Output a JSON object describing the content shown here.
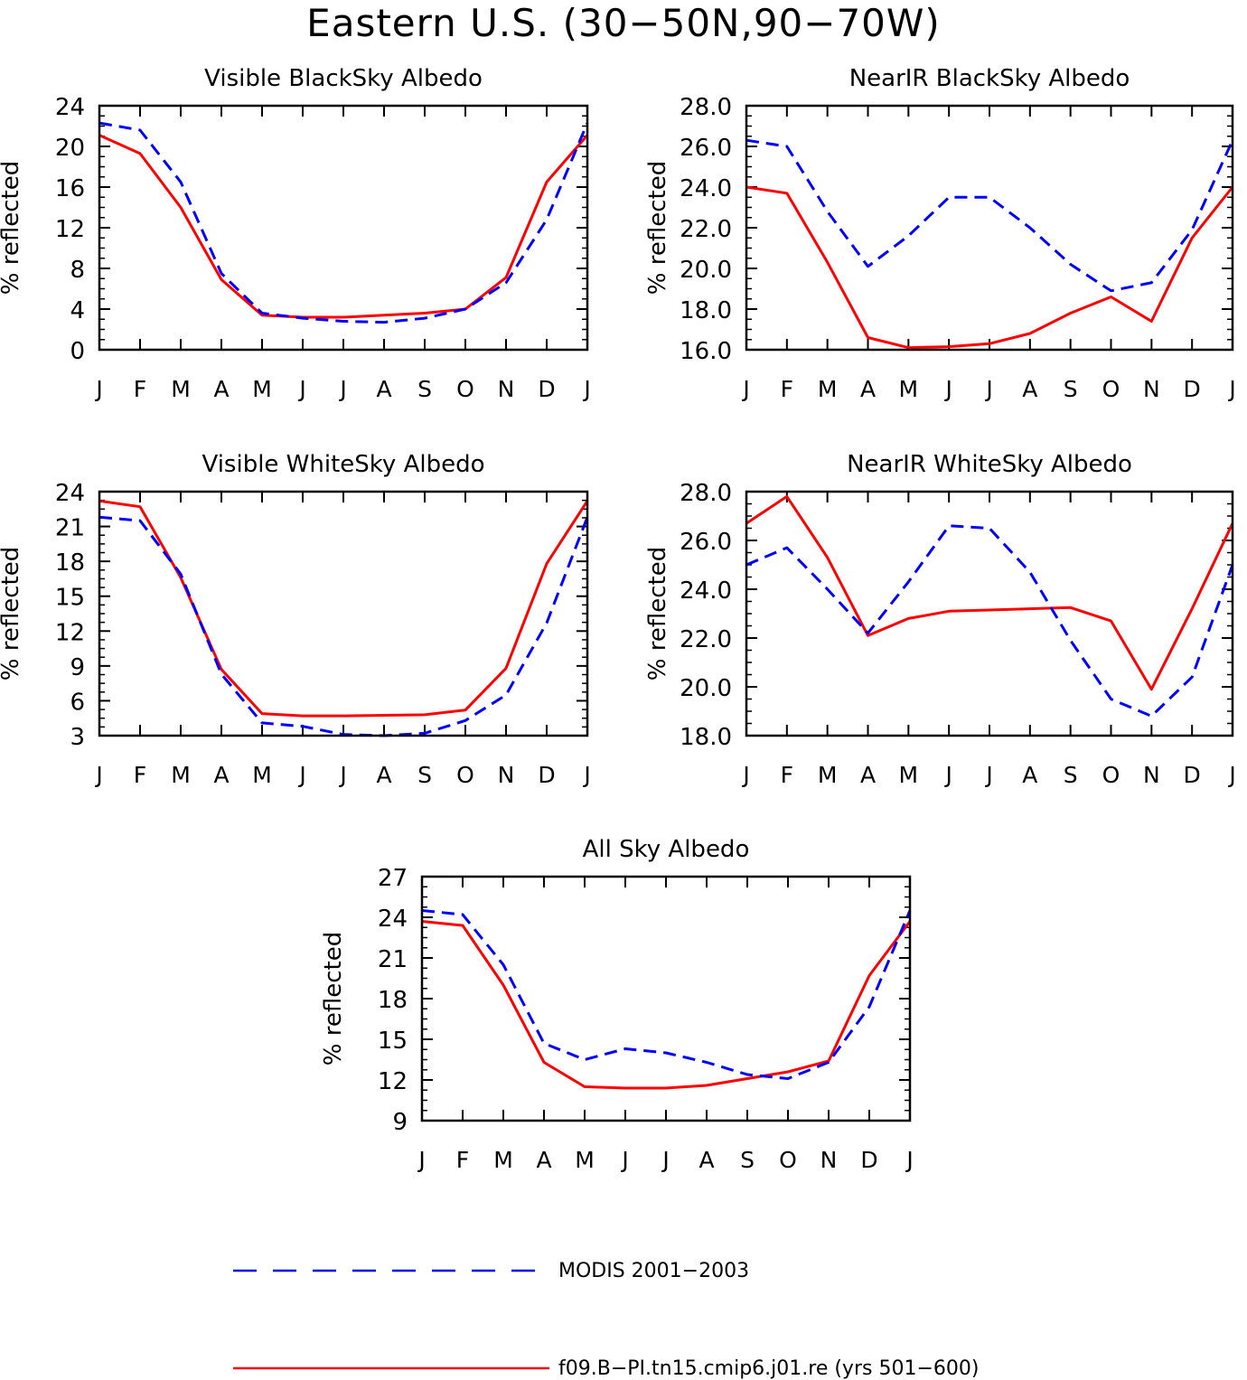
{
  "figure": {
    "title": "Eastern U.S. (30−50N,90−70W)"
  },
  "legend": [
    {
      "label": "MODIS 2001−2003",
      "color": "#0000ff",
      "style": "dashed"
    },
    {
      "label": "f09.B−PI.tn15.cmip6.j01.re (yrs 501−600)",
      "color": "#ff0000",
      "style": "solid"
    }
  ],
  "chart_data": [
    {
      "type": "line",
      "title": "Visible BlackSky Albedo",
      "ylabel": "% reflected",
      "xlabel": "",
      "categories": [
        "J",
        "F",
        "M",
        "A",
        "M",
        "J",
        "J",
        "A",
        "S",
        "O",
        "N",
        "D",
        "J"
      ],
      "ylim": [
        0,
        24
      ],
      "yticks": [
        0,
        4,
        8,
        12,
        16,
        20,
        24
      ],
      "ytick_labels": [
        "0",
        "4",
        "8",
        "12",
        "16",
        "20",
        "24"
      ],
      "series": [
        {
          "name": "MODIS 2001−2003",
          "color": "#0000ff",
          "dashed": true,
          "values": [
            22.3,
            21.6,
            16.5,
            7.5,
            3.6,
            3.1,
            2.8,
            2.7,
            3.1,
            4.0,
            6.6,
            12.8,
            22.3
          ]
        },
        {
          "name": "f09.B−PI.tn15.cmip6.j01.re (yrs 501−600)",
          "color": "#ff0000",
          "dashed": false,
          "values": [
            21.1,
            19.3,
            14.0,
            6.9,
            3.4,
            3.2,
            3.2,
            3.4,
            3.6,
            4.0,
            7.1,
            16.5,
            21.1
          ]
        }
      ]
    },
    {
      "type": "line",
      "title": "NearIR BlackSky Albedo",
      "ylabel": "% reflected",
      "xlabel": "",
      "categories": [
        "J",
        "F",
        "M",
        "A",
        "M",
        "J",
        "J",
        "A",
        "S",
        "O",
        "N",
        "D",
        "J"
      ],
      "ylim": [
        16,
        28
      ],
      "yticks": [
        16,
        18,
        20,
        22,
        24,
        26,
        28
      ],
      "ytick_labels": [
        "16.0",
        "18.0",
        "20.0",
        "22.0",
        "24.0",
        "26.0",
        "28.0"
      ],
      "series": [
        {
          "name": "MODIS 2001−2003",
          "color": "#0000ff",
          "dashed": true,
          "values": [
            26.3,
            26.0,
            22.8,
            20.1,
            21.6,
            23.5,
            23.5,
            22.0,
            20.2,
            18.9,
            19.3,
            21.9,
            26.3
          ]
        },
        {
          "name": "f09.B−PI.tn15.cmip6.j01.re (yrs 501−600)",
          "color": "#ff0000",
          "dashed": false,
          "values": [
            24.0,
            23.7,
            20.3,
            16.6,
            16.1,
            16.15,
            16.3,
            16.8,
            17.8,
            18.6,
            17.4,
            21.5,
            24.0
          ]
        }
      ]
    },
    {
      "type": "line",
      "title": "Visible WhiteSky Albedo",
      "ylabel": "% reflected",
      "xlabel": "",
      "categories": [
        "J",
        "F",
        "M",
        "A",
        "M",
        "J",
        "J",
        "A",
        "S",
        "O",
        "N",
        "D",
        "J"
      ],
      "ylim": [
        3,
        24
      ],
      "yticks": [
        3,
        6,
        9,
        12,
        15,
        18,
        21,
        24
      ],
      "ytick_labels": [
        "3",
        "6",
        "9",
        "12",
        "15",
        "18",
        "21",
        "24"
      ],
      "series": [
        {
          "name": "MODIS 2001−2003",
          "color": "#0000ff",
          "dashed": true,
          "values": [
            21.8,
            21.5,
            16.9,
            8.3,
            4.1,
            3.8,
            3.1,
            3.0,
            3.2,
            4.3,
            6.5,
            12.7,
            21.8
          ]
        },
        {
          "name": "f09.B−PI.tn15.cmip6.j01.re (yrs 501−600)",
          "color": "#ff0000",
          "dashed": false,
          "values": [
            23.2,
            22.7,
            16.6,
            8.7,
            4.9,
            4.7,
            4.7,
            4.75,
            4.8,
            5.2,
            8.8,
            17.8,
            23.2
          ]
        }
      ]
    },
    {
      "type": "line",
      "title": "NearIR WhiteSky Albedo",
      "ylabel": "% reflected",
      "xlabel": "",
      "categories": [
        "J",
        "F",
        "M",
        "A",
        "M",
        "J",
        "J",
        "A",
        "S",
        "O",
        "N",
        "D",
        "J"
      ],
      "ylim": [
        18,
        28
      ],
      "yticks": [
        18,
        20,
        22,
        24,
        26,
        28
      ],
      "ytick_labels": [
        "18.0",
        "20.0",
        "22.0",
        "24.0",
        "26.0",
        "28.0"
      ],
      "series": [
        {
          "name": "MODIS 2001−2003",
          "color": "#0000ff",
          "dashed": true,
          "values": [
            25.0,
            25.7,
            24.0,
            22.2,
            24.3,
            26.6,
            26.5,
            24.7,
            21.9,
            19.5,
            18.8,
            20.4,
            25.0
          ]
        },
        {
          "name": "f09.B−PI.tn15.cmip6.j01.re (yrs 501−600)",
          "color": "#ff0000",
          "dashed": false,
          "values": [
            26.7,
            27.8,
            25.3,
            22.1,
            22.8,
            23.1,
            23.15,
            23.2,
            23.25,
            22.7,
            19.9,
            23.2,
            26.7
          ]
        }
      ]
    },
    {
      "type": "line",
      "title": "All Sky Albedo",
      "ylabel": "% reflected",
      "xlabel": "",
      "categories": [
        "J",
        "F",
        "M",
        "A",
        "M",
        "J",
        "J",
        "A",
        "S",
        "O",
        "N",
        "D",
        "J"
      ],
      "ylim": [
        9,
        27
      ],
      "yticks": [
        9,
        12,
        15,
        18,
        21,
        24,
        27
      ],
      "ytick_labels": [
        "9",
        "12",
        "15",
        "18",
        "21",
        "24",
        "27"
      ],
      "series": [
        {
          "name": "MODIS 2001−2003",
          "color": "#0000ff",
          "dashed": true,
          "values": [
            24.5,
            24.2,
            20.5,
            14.7,
            13.5,
            14.3,
            14.0,
            13.3,
            12.4,
            12.1,
            13.3,
            17.4,
            24.5
          ]
        },
        {
          "name": "f09.B−PI.tn15.cmip6.j01.re (yrs 501−600)",
          "color": "#ff0000",
          "dashed": false,
          "values": [
            23.7,
            23.4,
            19.0,
            13.3,
            11.5,
            11.4,
            11.4,
            11.6,
            12.1,
            12.6,
            13.4,
            19.7,
            23.7
          ]
        }
      ]
    }
  ]
}
